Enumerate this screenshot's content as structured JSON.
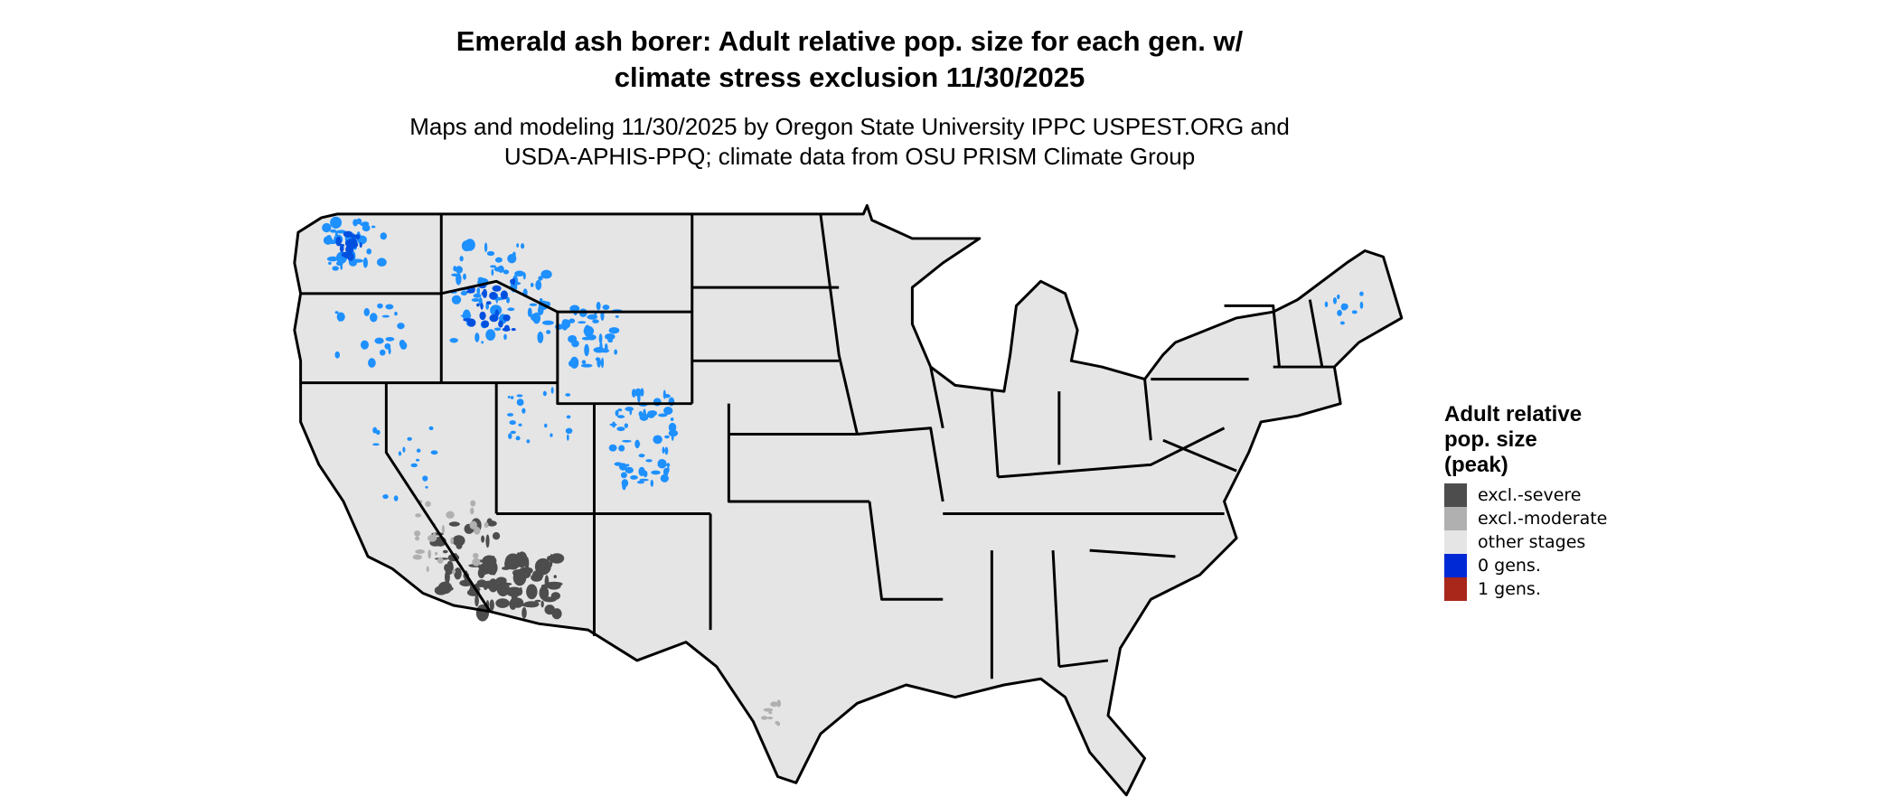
{
  "title_line1": "Emerald ash borer: Adult relative pop. size for each gen. w/",
  "title_line2": "climate stress exclusion 11/30/2025",
  "subtitle_line1": "Maps and modeling 11/30/2025 by Oregon State University IPPC USPEST.ORG and",
  "subtitle_line2": "USDA-APHIS-PPQ; climate data from OSU PRISM Climate Group",
  "legend": {
    "title_line1": "Adult relative",
    "title_line2": "pop. size",
    "title_line3": "(peak)",
    "items": [
      {
        "label": "excl.-severe",
        "color": "#4d4d4d"
      },
      {
        "label": "excl.-moderate",
        "color": "#b0b0b0"
      },
      {
        "label": "other stages",
        "color": "#e5e5e5"
      },
      {
        "label": "0 gens.",
        "color": "#0029d6"
      },
      {
        "label": "1 gens.",
        "color": "#a8261a"
      }
    ]
  },
  "map": {
    "region": "Contiguous United States",
    "boundary_color": "#000000",
    "land_color": "#e5e5e5",
    "zero_gens_accent": "#1e90ff"
  }
}
